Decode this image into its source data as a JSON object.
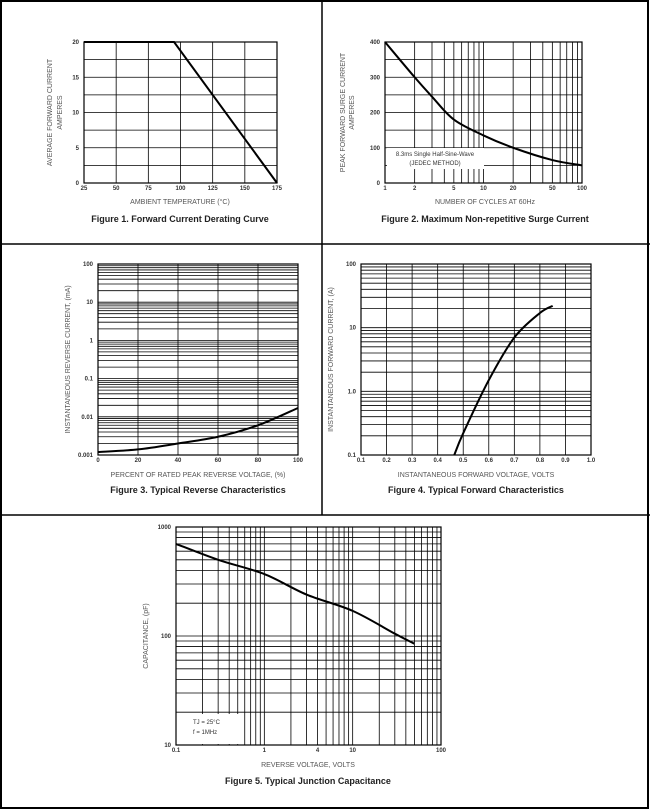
{
  "chart_data": [
    {
      "type": "line",
      "title": "Figure 1. Forward Current Derating Curve",
      "xlabel": "AMBIENT TEMPERATURE (°C)",
      "ylabel": [
        "AVERAGE FORWARD CURRENT",
        "AMPERES"
      ],
      "xscale": "linear",
      "yscale": "linear",
      "xlim": [
        25,
        175
      ],
      "ylim": [
        0,
        20
      ],
      "xgrid_step": 25,
      "ygrid_step": 2.5,
      "xticks": [
        25,
        50,
        75,
        100,
        125,
        150,
        175
      ],
      "yticks": [
        0,
        5,
        10,
        15,
        20
      ],
      "series": [
        {
          "name": "Derating",
          "x": [
            25,
            95,
            175
          ],
          "y": [
            20,
            20,
            0
          ]
        }
      ]
    },
    {
      "type": "line",
      "title": "Figure 2. Maximum Non-repetitive Surge Current",
      "xlabel": "NUMBER OF CYCLES AT 60Hz",
      "ylabel": [
        "PEAK FORWARD SURGE CURRENT",
        "AMPERES"
      ],
      "xscale": "log",
      "yscale": "linear",
      "xlim": [
        1,
        100
      ],
      "ylim": [
        0,
        400
      ],
      "ygrid_step": 50,
      "xticks": [
        1,
        2,
        5,
        10,
        20,
        50,
        100
      ],
      "yticks": [
        0,
        100,
        200,
        300,
        400
      ],
      "annotation": [
        "8.3ms Single Half-Sine-Wave",
        "(JEDEC METHOD)"
      ],
      "series": [
        {
          "name": "Surge",
          "x": [
            1,
            2,
            3,
            5,
            10,
            20,
            50,
            100
          ],
          "y": [
            400,
            300,
            245,
            180,
            135,
            100,
            65,
            50
          ]
        }
      ]
    },
    {
      "type": "line",
      "title": "Figure 3. Typical Reverse Characteristics",
      "xlabel": "PERCENT OF RATED PEAK REVERSE VOLTAGE, (%)",
      "ylabel": [
        "INSTANTANEOUS  REVERSE CURRENT, (mA)"
      ],
      "xscale": "linear",
      "yscale": "log",
      "xlim": [
        0,
        100
      ],
      "ylim": [
        0.001,
        100
      ],
      "xgrid_step": 20,
      "xticks": [
        0,
        20,
        40,
        60,
        80,
        100
      ],
      "yticks": [
        0.001,
        0.01,
        0.1,
        1,
        10,
        100
      ],
      "series": [
        {
          "name": "Reverse current",
          "x": [
            0,
            20,
            40,
            60,
            80,
            100
          ],
          "y": [
            0.0012,
            0.0014,
            0.002,
            0.003,
            0.006,
            0.017
          ]
        }
      ]
    },
    {
      "type": "line",
      "title": "Figure 4. Typical Forward Characteristics",
      "xlabel": "INSTANTANEOUS FORWARD VOLTAGE, VOLTS",
      "ylabel": [
        "INSTANTANEOUS  FORWARD CURRENT, (A)"
      ],
      "xscale": "linear",
      "yscale": "log",
      "xlim": [
        0.1,
        1.0
      ],
      "ylim": [
        0.1,
        100
      ],
      "xgrid_step": 0.1,
      "xticks": [
        "0.1",
        "0.2",
        "0.3",
        "0.4",
        "0.5",
        "0.6",
        "0.7",
        "0.8",
        "0.9",
        "1.0"
      ],
      "yticks": [
        "0.1",
        "1.0",
        "10",
        "100"
      ],
      "series": [
        {
          "name": "Forward current",
          "x": [
            0.465,
            0.5,
            0.6,
            0.7,
            0.8,
            0.85
          ],
          "y": [
            0.1,
            0.22,
            1.5,
            7,
            17,
            22
          ]
        }
      ]
    },
    {
      "type": "line",
      "title": "Figure 5. Typical Junction Capacitance",
      "xlabel": "REVERSE VOLTAGE, VOLTS",
      "ylabel": [
        "CAPACITANCE, (pF)"
      ],
      "xscale": "log",
      "yscale": "log",
      "xlim": [
        0.1,
        100
      ],
      "ylim": [
        10,
        1000
      ],
      "xticks": [
        "0.1",
        "1",
        "4",
        "10",
        "100"
      ],
      "yticks": [
        "10",
        "100",
        "1000"
      ],
      "annotation": [
        "TJ = 25°C",
        "f = 1MHz"
      ],
      "series": [
        {
          "name": "Capacitance",
          "x": [
            0.1,
            0.3,
            1,
            3,
            10,
            30,
            50
          ],
          "y": [
            700,
            500,
            370,
            240,
            170,
            105,
            85
          ]
        }
      ]
    }
  ],
  "colors": {
    "grid": "#000000",
    "curve": "#000000",
    "border": "#000000"
  }
}
